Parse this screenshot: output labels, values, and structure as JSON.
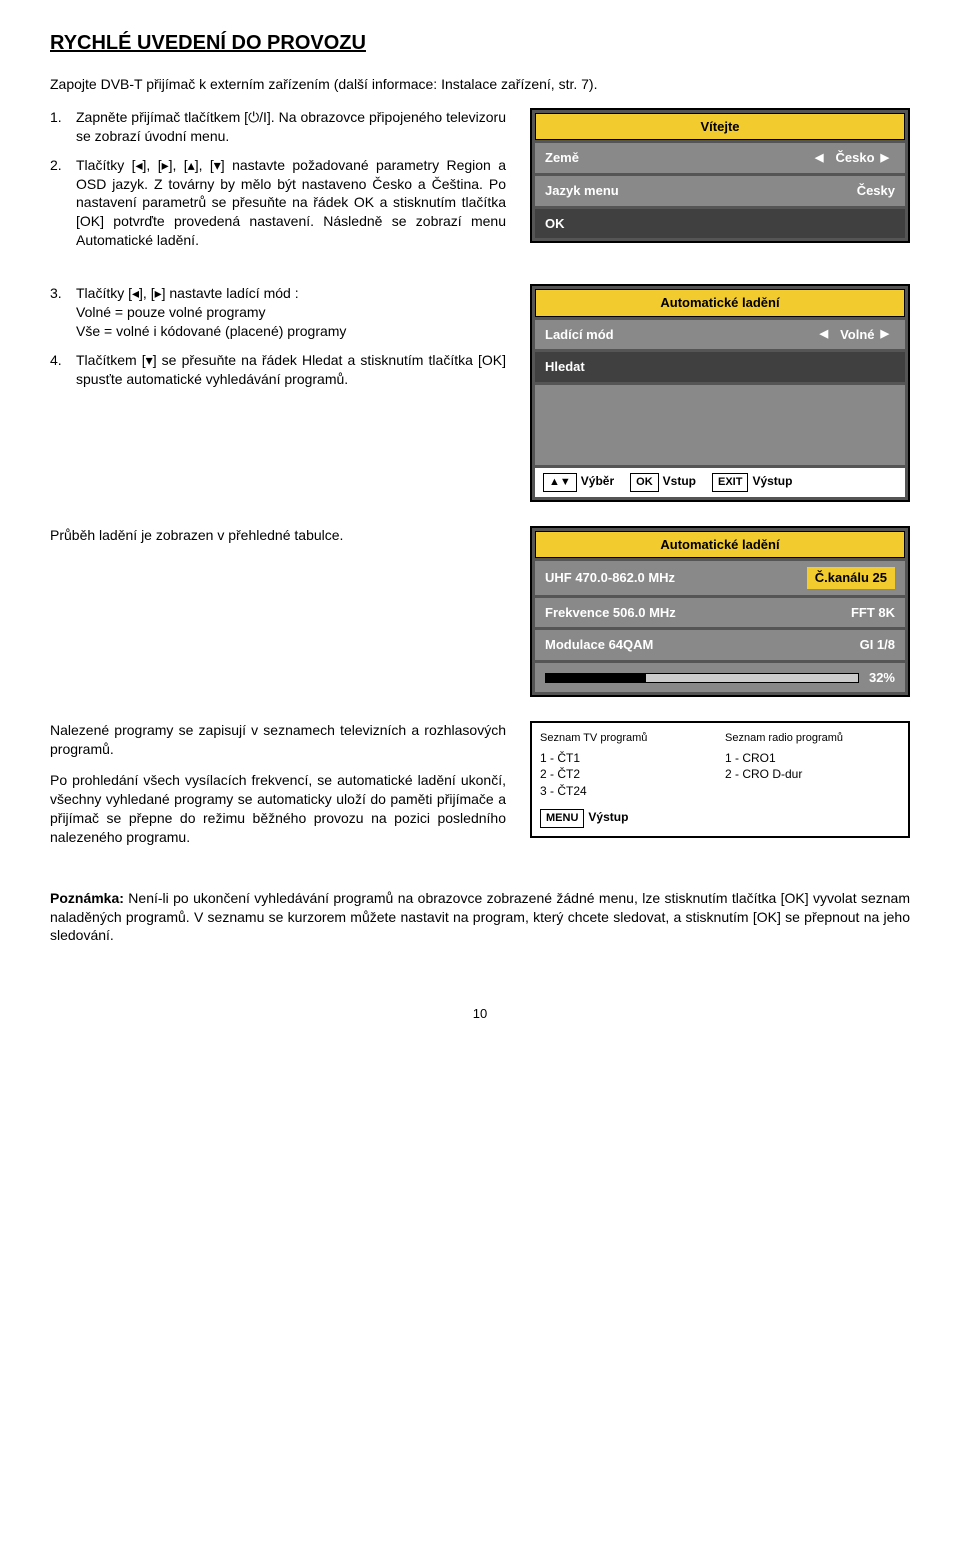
{
  "title": "RYCHLÉ UVEDENÍ DO PROVOZU",
  "intro": "Zapojte DVB-T přijímač k externím zařízením (další informace: Instalace zařízení, str. 7).",
  "steps": {
    "s1": {
      "num": "1.",
      "text": "Zapněte přijímač tlačítkem [⏻/I]. Na obrazovce připojeného televizoru se zobrazí úvodní menu."
    },
    "s2": {
      "num": "2.",
      "text": "Tlačítky  [◂], [▸], [▴], [▾] nastavte požadované parametry Region a OSD jazyk. Z továrny by mělo být nastaveno Česko a Čeština. Po nastavení parametrů se přesuňte na řádek OK a stisknutím tlačítka [OK] potvrďte provedená nastavení. Následně se zobrazí menu Automatické ladění."
    },
    "s3": {
      "num": "3.",
      "text": "Tlačítky [◂], [▸] nastavte ladící mód :",
      "sub1": "Volné = pouze volné programy",
      "sub2": "Vše = volné i kódované (placené) programy"
    },
    "s4": {
      "num": "4.",
      "text": "Tlačítkem [▾] se přesuňte na řádek Hledat a stisknutím tlačítka [OK] spusťte automatické vyhledávání programů."
    }
  },
  "para_progress": "Průběh ladění je zobrazen v přehledné tabulce.",
  "para_found": "Nalezené programy se zapisují v seznamech televizních a rozhlasových programů.",
  "para_done": "Po prohledání všech vysílacích frekvencí, se automatické ladění ukončí, všechny vyhledané programy se automaticky uloží do paměti přijímače a přijímač se přepne do režimu běžného provozu na pozici posledního nalezeného programu.",
  "note_label": "Poznámka:",
  "note_text": " Není-li po ukončení vyhledávání programů na obrazovce zobrazené žádné menu, lze stisknutím tlačítka [OK] vyvolat seznam naladěných programů. V seznamu se kurzorem můžete nastavit na program, který chcete sledovat, a stisknutím [OK] se přepnout na jeho sledování.",
  "page_num": "10",
  "osd_welcome": {
    "title": "Vítejte",
    "rows": [
      {
        "label": "Země",
        "value": "Česko",
        "arrows": true
      },
      {
        "label": "Jazyk menu",
        "value": "Česky",
        "arrows": false
      }
    ],
    "ok": "OK",
    "header_bg": "#f2cb2e"
  },
  "osd_tuning_menu": {
    "title": "Automatické ladění",
    "row": {
      "label": "Ladící mód",
      "value": "Volné"
    },
    "search": "Hledat",
    "footer": [
      {
        "key": "▲▼",
        "label": "Výběr"
      },
      {
        "key": "OK",
        "label": "Vstup"
      },
      {
        "key": "EXIT",
        "label": "Výstup"
      }
    ]
  },
  "osd_progress": {
    "title": "Automatické ladění",
    "rows": [
      {
        "label": "UHF 470.0-862.0 MHz",
        "value": "Č.kanálu 25",
        "hl": true
      },
      {
        "label": "Frekvence 506.0 MHz",
        "value": "FFT 8K",
        "hl": false
      },
      {
        "label": "Modulace 64QAM",
        "value": "GI 1/8",
        "hl": false
      }
    ],
    "percent_label": "32%",
    "percent": 32
  },
  "osd_found": {
    "tv_hdr": "Seznam TV programů",
    "tv": [
      "1 - ČT1",
      "2 - ČT2",
      "3 - ČT24"
    ],
    "radio_hdr": "Seznam radio programů",
    "radio": [
      "1 - CRO1",
      "2 - CRO D-dur"
    ],
    "menu_key": "MENU",
    "menu_label": "Výstup"
  }
}
